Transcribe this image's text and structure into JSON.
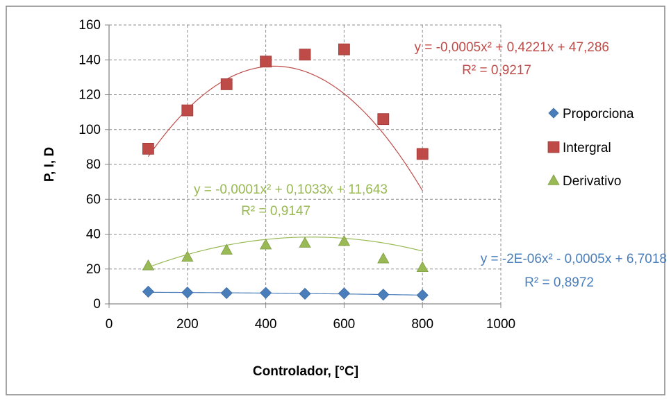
{
  "chart_data": {
    "type": "scatter",
    "xlabel": "Controlador, [°C]",
    "ylabel": "P, I, D",
    "xlim": [
      0,
      1000
    ],
    "ylim": [
      0,
      160
    ],
    "x_ticks": [
      "0",
      "200",
      "400",
      "600",
      "800",
      "1000"
    ],
    "y_ticks": [
      "0",
      "20",
      "40",
      "60",
      "80",
      "100",
      "120",
      "140",
      "160"
    ],
    "grid": true,
    "legend_position": "right",
    "series": [
      {
        "name": "Proporciona",
        "marker": "diamond",
        "color": "#4a7ebb",
        "x": [
          100,
          200,
          300,
          400,
          500,
          600,
          700,
          800
        ],
        "y": [
          7,
          6.5,
          6.2,
          6.3,
          5.8,
          6,
          5.3,
          5
        ],
        "trend": {
          "equation": "y = -2E-06x² - 0,0005x + 6,7018",
          "r2": "R² = 0,8972",
          "a": -2e-06,
          "b": -0.0005,
          "c": 6.7018
        }
      },
      {
        "name": "Intergral",
        "marker": "square",
        "color": "#be4b48",
        "x": [
          100,
          200,
          300,
          400,
          500,
          600,
          700,
          800
        ],
        "y": [
          89,
          111,
          126,
          139,
          143,
          146,
          106,
          86
        ],
        "trend": {
          "equation": "y = -0,0005x² + 0,4221x + 47,286",
          "r2": "R² = 0,9217",
          "a": -0.0005,
          "b": 0.4221,
          "c": 47.286
        }
      },
      {
        "name": "Derivativo",
        "marker": "triangle",
        "color": "#98b954",
        "x": [
          100,
          200,
          300,
          400,
          500,
          600,
          700,
          800
        ],
        "y": [
          22,
          27,
          31,
          34,
          35,
          36,
          26,
          21
        ],
        "trend": {
          "equation": "y = -0,0001x² + 0,1033x + 11,643",
          "r2": "R² = 0,9147",
          "a": -0.0001,
          "b": 0.1033,
          "c": 11.643
        }
      }
    ]
  }
}
